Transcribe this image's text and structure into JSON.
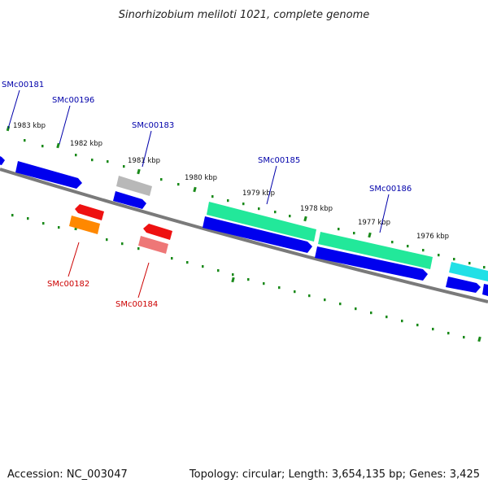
{
  "title": "Sinorhizobium meliloti 1021, complete genome",
  "footer": {
    "accession": "Accession: NC_003047",
    "topology": "Topology: circular; Length: 3,654,135 bp; Genes: 3,425"
  },
  "colors": {
    "backbone": "#7a7a7a",
    "tick": "#1a8a1a",
    "label_forward": "#0000aa",
    "label_reverse": "#cc0000",
    "cds_blue": "#0000ee",
    "teal": "#22e89a",
    "cyan": "#22e0e6",
    "grey": "#b8b8b8",
    "red": "#ee1111",
    "orange": "#ff8800",
    "pink": "#ee7777"
  },
  "scale_labels": [
    "1983 kbp",
    "1982 kbp",
    "1981 kbp",
    "1980 kbp",
    "1979 kbp",
    "1978 kbp",
    "1977 kbp",
    "1976 kbp"
  ],
  "gene_labels_forward": [
    "SMc00181",
    "SMc00196",
    "SMc00183",
    "SMc00185",
    "SMc00186"
  ],
  "gene_labels_reverse": [
    "SMc00182",
    "SMc00184"
  ]
}
